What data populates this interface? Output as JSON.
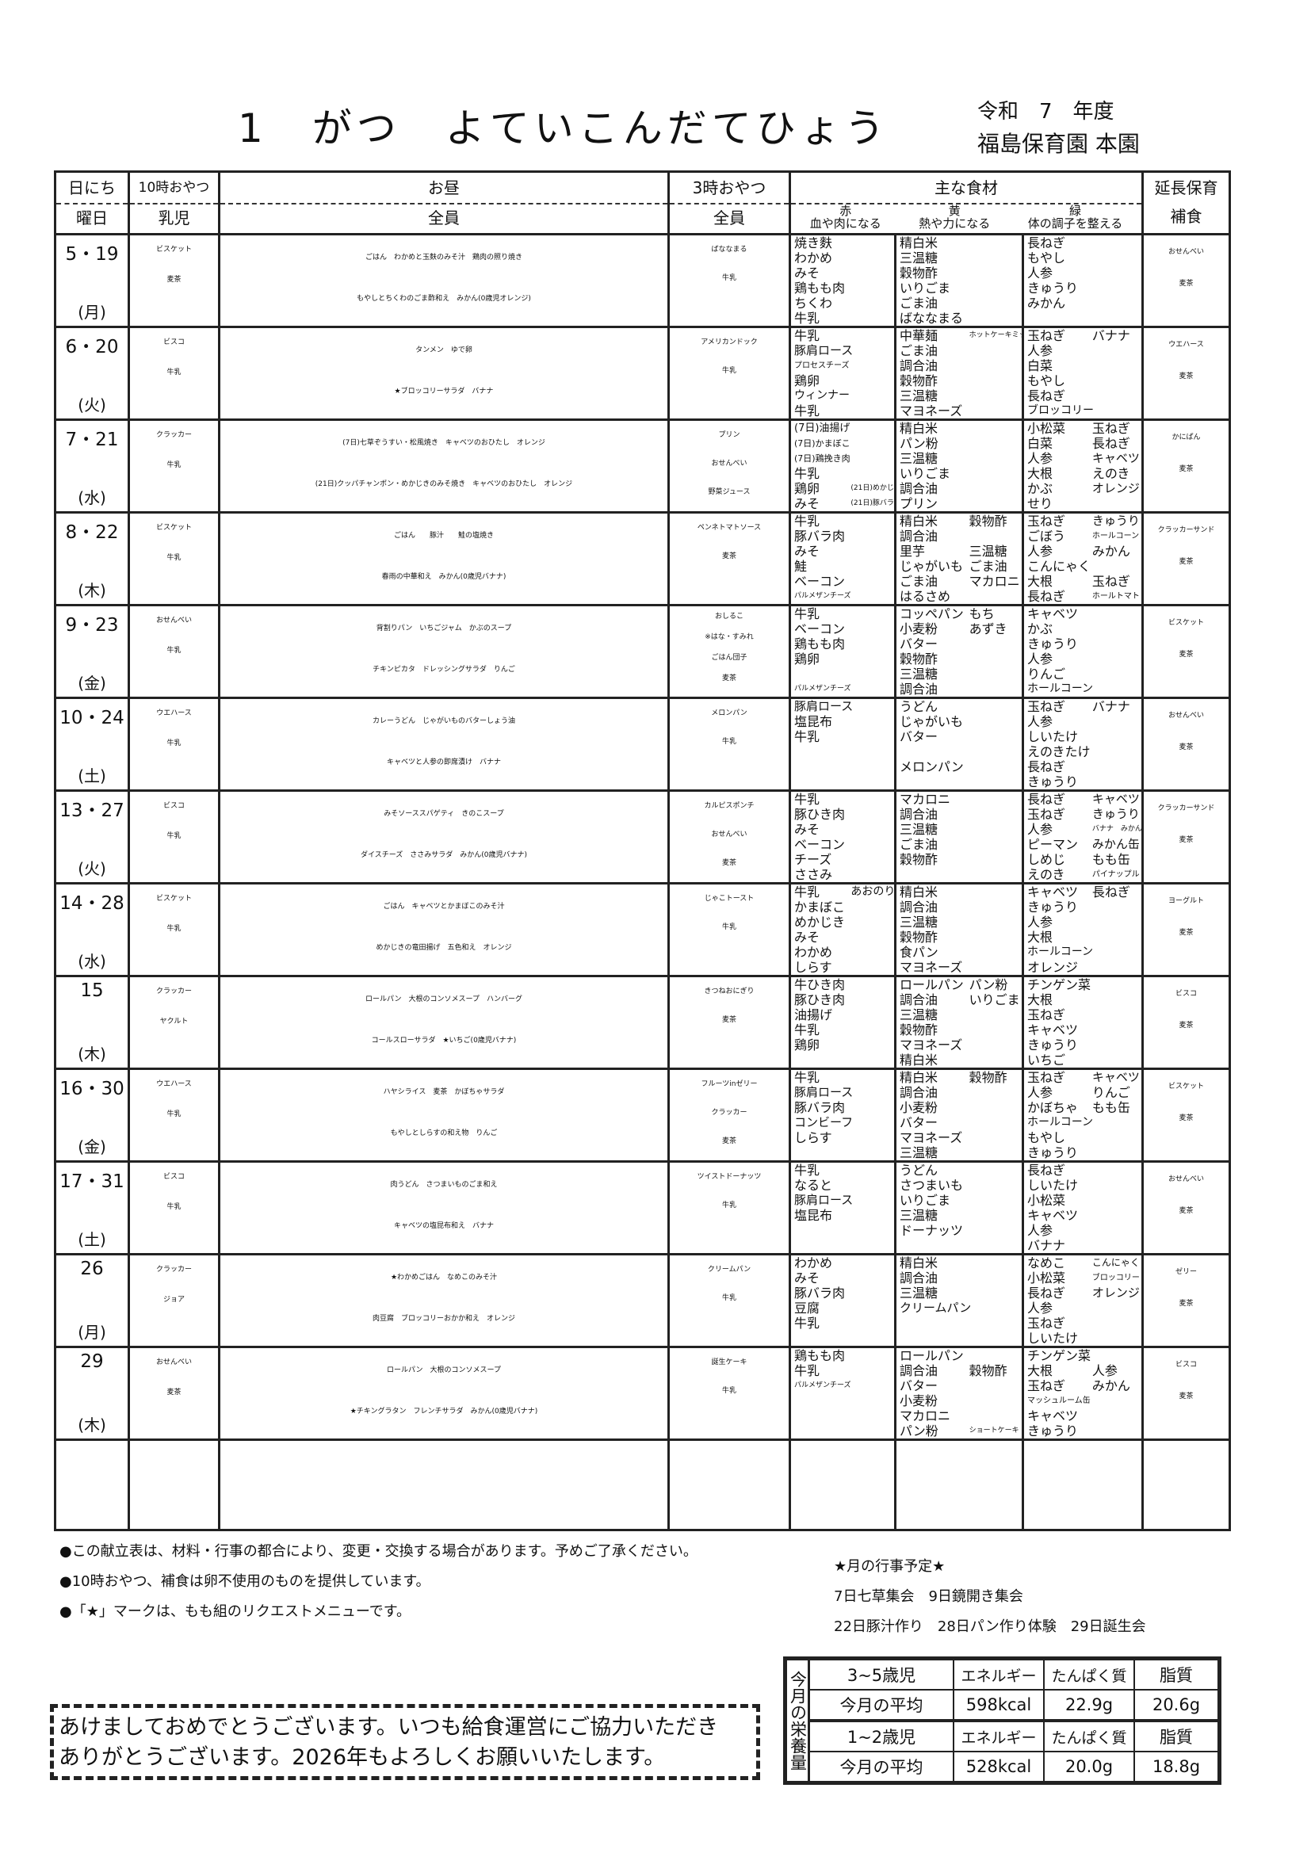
{
  "header": {
    "title": "1　がつ　よていこんだてひょう",
    "fiscal_year": "令和　7　年度",
    "school": "福島保育園 本園"
  },
  "columns": {
    "date_top": "日にち",
    "date_bottom": "曜日",
    "am_top": "10時おやつ",
    "am_bottom": "乳児",
    "lunch_top": "お昼",
    "lunch_bottom": "全員",
    "pm_top": "3時おやつ",
    "pm_bottom": "全員",
    "ing_top": "主な食材",
    "red": "赤",
    "red_desc": "血や肉になる",
    "yellow": "黄",
    "yellow_desc": "熱や力になる",
    "green": "緑",
    "green_desc": "体の調子を整える",
    "ext_top": "延長保育",
    "ext_bottom": "補食"
  },
  "rows": [
    {
      "date": "5・19",
      "dow": "(月)",
      "am": [
        "ビスケット",
        "麦茶"
      ],
      "lunch": [
        "ごはん　わかめと玉麩のみそ汁　鶏肉の照り焼き",
        "もやしとちくわのごま酢和え　みかん(0歳児オレンジ)"
      ],
      "pm": [
        "ばななまる",
        "牛乳"
      ],
      "red": [
        [
          "焼き麩"
        ],
        [
          "わかめ"
        ],
        [
          "みそ"
        ],
        [
          "鶏もも肉"
        ],
        [
          "ちくわ"
        ],
        [
          "牛乳"
        ]
      ],
      "yellow": [
        [
          "精白米"
        ],
        [
          "三温糖"
        ],
        [
          "穀物酢"
        ],
        [
          "いりごま"
        ],
        [
          "ごま油"
        ],
        [
          "ばななまる"
        ]
      ],
      "green": [
        [
          "長ねぎ"
        ],
        [
          "もやし"
        ],
        [
          "人参"
        ],
        [
          "きゅうり"
        ],
        [
          "みかん"
        ]
      ],
      "ext": [
        "おせんべい",
        "麦茶"
      ]
    },
    {
      "date": "6・20",
      "dow": "(火)",
      "am": [
        "ビスコ",
        "牛乳"
      ],
      "lunch": [
        "タンメン　ゆで卵",
        "★ブロッコリーサラダ　バナナ"
      ],
      "pm": [
        "アメリカンドック",
        "牛乳"
      ],
      "red": [
        [
          "牛乳"
        ],
        [
          "豚肩ロース"
        ],
        [
          "プロセスチーズ"
        ],
        [
          "鶏卵"
        ],
        [
          "ウィンナー"
        ],
        [
          "牛乳"
        ]
      ],
      "yellow": [
        [
          "中華麺",
          "ホットケーキミックス"
        ],
        [
          "ごま油"
        ],
        [
          "調合油"
        ],
        [
          "穀物酢"
        ],
        [
          "三温糖"
        ],
        [
          "マヨネーズ"
        ]
      ],
      "green": [
        [
          "玉ねぎ",
          "バナナ"
        ],
        [
          "人参"
        ],
        [
          "白菜"
        ],
        [
          "もやし"
        ],
        [
          "長ねぎ"
        ],
        [
          "ブロッコリー"
        ]
      ],
      "ext": [
        "ウエハース",
        "麦茶"
      ]
    },
    {
      "date": "7・21",
      "dow": "(水)",
      "am": [
        "クラッカー",
        "牛乳"
      ],
      "lunch": [
        "(7日)七草ぞうすい・松風焼き　キャベツのおひたし　オレンジ",
        "(21日)クッパチャンポン・めかじきのみそ焼き　キャベツのおひたし　オレンジ"
      ],
      "pm": [
        "プリン",
        "おせんべい",
        "野菜ジュース"
      ],
      "red": [
        [
          "(7日)油揚げ"
        ],
        [
          "(7日)かまぼこ"
        ],
        [
          "(7日)鶏挽き肉"
        ],
        [
          "牛乳"
        ],
        [
          "鶏卵",
          "(21日)めかじき"
        ],
        [
          "みそ",
          "(21日)豚バラ"
        ]
      ],
      "yellow": [
        [
          "精白米"
        ],
        [
          "パン粉"
        ],
        [
          "三温糖"
        ],
        [
          "いりごま"
        ],
        [
          "調合油"
        ],
        [
          "プリン"
        ]
      ],
      "green": [
        [
          "小松菜",
          "玉ねぎ"
        ],
        [
          "白菜",
          "長ねぎ"
        ],
        [
          "人参",
          "キャベツ"
        ],
        [
          "大根",
          "えのき"
        ],
        [
          "かぶ",
          "オレンジ"
        ],
        [
          "せり"
        ]
      ],
      "ext": [
        "かにぱん",
        "麦茶"
      ]
    },
    {
      "date": "8・22",
      "dow": "(木)",
      "am": [
        "ビスケット",
        "牛乳"
      ],
      "lunch": [
        "ごはん　　豚汁　　鮭の塩焼き",
        "春雨の中華和え　みかん(0歳児バナナ)"
      ],
      "pm": [
        "ペンネトマトソース",
        "麦茶"
      ],
      "red": [
        [
          "牛乳"
        ],
        [
          "豚バラ肉"
        ],
        [
          "みそ"
        ],
        [
          "鮭"
        ],
        [
          "ベーコン"
        ],
        [
          "パルメザンチーズ"
        ]
      ],
      "yellow": [
        [
          "精白米",
          "穀物酢"
        ],
        [
          "調合油"
        ],
        [
          "里芋",
          "三温糖"
        ],
        [
          "じゃがいも",
          "ごま油"
        ],
        [
          "ごま油",
          "マカロニ"
        ],
        [
          "はるさめ"
        ]
      ],
      "green": [
        [
          "玉ねぎ",
          "きゅうり"
        ],
        [
          "ごぼう",
          "ホールコーン"
        ],
        [
          "人参",
          "みかん"
        ],
        [
          "こんにゃく"
        ],
        [
          "大根",
          "玉ねぎ"
        ],
        [
          "長ねぎ",
          "ホールトマト"
        ]
      ],
      "ext": [
        "クラッカーサンド",
        "麦茶"
      ]
    },
    {
      "date": "9・23",
      "dow": "(金)",
      "am": [
        "おせんべい",
        "牛乳"
      ],
      "lunch": [
        "背割りパン　いちごジャム　かぶのスープ",
        "チキンピカタ　ドレッシングサラダ　りんご"
      ],
      "pm": [
        "おしるこ",
        "※はな・すみれ",
        "ごはん団子",
        "麦茶"
      ],
      "red": [
        [
          "牛乳"
        ],
        [
          "ベーコン"
        ],
        [
          "鶏もも肉"
        ],
        [
          "鶏卵"
        ],
        [
          ""
        ],
        [
          "パルメザンチーズ"
        ]
      ],
      "yellow": [
        [
          "コッペパン",
          "もち"
        ],
        [
          "小麦粉",
          "あずき"
        ],
        [
          "バター"
        ],
        [
          "穀物酢"
        ],
        [
          "三温糖"
        ],
        [
          "調合油"
        ]
      ],
      "green": [
        [
          "キャベツ"
        ],
        [
          "かぶ"
        ],
        [
          "きゅうり"
        ],
        [
          "人参"
        ],
        [
          "りんご"
        ],
        [
          "ホールコーン"
        ]
      ],
      "ext": [
        "ビスケット",
        "麦茶"
      ]
    },
    {
      "date": "10・24",
      "dow": "(土)",
      "am": [
        "ウエハース",
        "牛乳"
      ],
      "lunch": [
        "カレーうどん　じゃがいものバターしょう油",
        "キャベツと人参の即席漬け　バナナ"
      ],
      "pm": [
        "メロンパン",
        "牛乳"
      ],
      "red": [
        [
          "豚肩ロース"
        ],
        [
          "塩昆布"
        ],
        [
          "牛乳"
        ]
      ],
      "yellow": [
        [
          "うどん"
        ],
        [
          "じゃがいも"
        ],
        [
          "バター"
        ],
        [
          ""
        ],
        [
          "メロンパン"
        ]
      ],
      "green": [
        [
          "玉ねぎ",
          "バナナ"
        ],
        [
          "人参"
        ],
        [
          "しいたけ"
        ],
        [
          "えのきたけ"
        ],
        [
          "長ねぎ"
        ],
        [
          "きゅうり"
        ]
      ],
      "ext": [
        "おせんべい",
        "麦茶"
      ]
    },
    {
      "date": "13・27",
      "dow": "(火)",
      "am": [
        "ビスコ",
        "牛乳"
      ],
      "lunch": [
        "みそソーススパゲティ　きのこスープ",
        "ダイスチーズ　ささみサラダ　みかん(0歳児バナナ)"
      ],
      "pm": [
        "カルピスポンチ",
        "おせんべい",
        "麦茶"
      ],
      "red": [
        [
          "牛乳"
        ],
        [
          "豚ひき肉"
        ],
        [
          "みそ"
        ],
        [
          "ベーコン"
        ],
        [
          "チーズ"
        ],
        [
          "ささみ"
        ]
      ],
      "yellow": [
        [
          "マカロニ"
        ],
        [
          "調合油"
        ],
        [
          "三温糖"
        ],
        [
          "ごま油"
        ],
        [
          "穀物酢"
        ]
      ],
      "green": [
        [
          "長ねぎ",
          "キャベツ"
        ],
        [
          "玉ねぎ",
          "きゅうり"
        ],
        [
          "人参",
          "バナナ　みかん"
        ],
        [
          "ピーマン",
          "みかん缶"
        ],
        [
          "しめじ",
          "もも缶"
        ],
        [
          "えのき",
          "パイナップル"
        ]
      ],
      "ext": [
        "クラッカーサンド",
        "麦茶"
      ]
    },
    {
      "date": "14・28",
      "dow": "(水)",
      "am": [
        "ビスケット",
        "牛乳"
      ],
      "lunch": [
        "ごはん　キャベツとかまぼこのみそ汁",
        "めかじきの竜田揚げ　五色和え　オレンジ"
      ],
      "pm": [
        "じゃこトースト",
        "牛乳"
      ],
      "red": [
        [
          "牛乳",
          "あおのり"
        ],
        [
          "かまぼこ"
        ],
        [
          "めかじき"
        ],
        [
          "みそ"
        ],
        [
          "わかめ"
        ],
        [
          "しらす"
        ]
      ],
      "yellow": [
        [
          "精白米"
        ],
        [
          "調合油"
        ],
        [
          "三温糖"
        ],
        [
          "穀物酢"
        ],
        [
          "食パン"
        ],
        [
          "マヨネーズ"
        ]
      ],
      "green": [
        [
          "キャベツ",
          "長ねぎ"
        ],
        [
          "きゅうり"
        ],
        [
          "人参"
        ],
        [
          "大根"
        ],
        [
          "ホールコーン"
        ],
        [
          "オレンジ"
        ]
      ],
      "ext": [
        "ヨーグルト",
        "麦茶"
      ]
    },
    {
      "date": "15",
      "dow": "(木)",
      "am": [
        "クラッカー",
        "ヤクルト"
      ],
      "lunch": [
        "ロールパン　大根のコンソメスープ　ハンバーグ",
        "コールスローサラダ　★いちご(0歳児バナナ)"
      ],
      "pm": [
        "きつねおにぎり",
        "麦茶"
      ],
      "red": [
        [
          "牛ひき肉"
        ],
        [
          "豚ひき肉"
        ],
        [
          "油揚げ"
        ],
        [
          "牛乳"
        ],
        [
          "鶏卵"
        ]
      ],
      "yellow": [
        [
          "ロールパン",
          "パン粉"
        ],
        [
          "調合油",
          "いりごま"
        ],
        [
          "三温糖"
        ],
        [
          "穀物酢"
        ],
        [
          "マヨネーズ"
        ],
        [
          "精白米"
        ]
      ],
      "green": [
        [
          "チンゲン菜"
        ],
        [
          "大根"
        ],
        [
          "玉ねぎ"
        ],
        [
          "キャベツ"
        ],
        [
          "きゅうり"
        ],
        [
          "いちご"
        ]
      ],
      "ext": [
        "ビスコ",
        "麦茶"
      ]
    },
    {
      "date": "16・30",
      "dow": "(金)",
      "am": [
        "ウエハース",
        "牛乳"
      ],
      "lunch": [
        "ハヤシライス　麦茶　かぼちゃサラダ",
        "もやしとしらすの和え物　りんご"
      ],
      "pm": [
        "フルーツinゼリー",
        "クラッカー",
        "麦茶"
      ],
      "red": [
        [
          "牛乳"
        ],
        [
          "豚肩ロース"
        ],
        [
          "豚バラ肉"
        ],
        [
          "コンビーフ"
        ],
        [
          "しらす"
        ]
      ],
      "yellow": [
        [
          "精白米",
          "穀物酢"
        ],
        [
          "調合油"
        ],
        [
          "小麦粉"
        ],
        [
          "バター"
        ],
        [
          "マヨネーズ"
        ],
        [
          "三温糖"
        ]
      ],
      "green": [
        [
          "玉ねぎ",
          "キャベツ"
        ],
        [
          "人参",
          "りんご"
        ],
        [
          "かぼちゃ",
          "もも缶"
        ],
        [
          "ホールコーン"
        ],
        [
          "もやし"
        ],
        [
          "きゅうり"
        ]
      ],
      "ext": [
        "ビスケット",
        "麦茶"
      ]
    },
    {
      "date": "17・31",
      "dow": "(土)",
      "am": [
        "ビスコ",
        "牛乳"
      ],
      "lunch": [
        "肉うどん　さつまいものごま和え",
        "キャベツの塩昆布和え　バナナ"
      ],
      "pm": [
        "ツイストドーナッツ",
        "牛乳"
      ],
      "red": [
        [
          "牛乳"
        ],
        [
          "なると"
        ],
        [
          "豚肩ロース"
        ],
        [
          "塩昆布"
        ]
      ],
      "yellow": [
        [
          "うどん"
        ],
        [
          "さつまいも"
        ],
        [
          "いりごま"
        ],
        [
          "三温糖"
        ],
        [
          "ドーナッツ"
        ]
      ],
      "green": [
        [
          "長ねぎ"
        ],
        [
          "しいたけ"
        ],
        [
          "小松菜"
        ],
        [
          "キャベツ"
        ],
        [
          "人参"
        ],
        [
          "バナナ"
        ]
      ],
      "ext": [
        "おせんべい",
        "麦茶"
      ]
    },
    {
      "date": "26",
      "dow": "(月)",
      "am": [
        "クラッカー",
        "ジョア"
      ],
      "lunch": [
        "★わかめごはん　なめこのみそ汁",
        "肉豆腐　ブロッコリーおかか和え　オレンジ"
      ],
      "pm": [
        "クリームパン",
        "牛乳"
      ],
      "red": [
        [
          "わかめ"
        ],
        [
          "みそ"
        ],
        [
          "豚バラ肉"
        ],
        [
          "豆腐"
        ],
        [
          "牛乳"
        ]
      ],
      "yellow": [
        [
          "精白米"
        ],
        [
          "調合油"
        ],
        [
          "三温糖"
        ],
        [
          "クリームパン"
        ]
      ],
      "green": [
        [
          "なめこ",
          "こんにゃく"
        ],
        [
          "小松菜",
          "ブロッコリー"
        ],
        [
          "長ねぎ",
          "オレンジ"
        ],
        [
          "人参"
        ],
        [
          "玉ねぎ"
        ],
        [
          "しいたけ"
        ]
      ],
      "ext": [
        "ゼリー",
        "麦茶"
      ]
    },
    {
      "date": "29",
      "dow": "(木)",
      "am": [
        "おせんべい",
        "麦茶"
      ],
      "lunch": [
        "ロールパン　大根のコンソメスープ",
        "★チキングラタン　フレンチサラダ　みかん(0歳児バナナ)"
      ],
      "pm": [
        "誕生ケーキ",
        "牛乳"
      ],
      "red": [
        [
          "鶏もも肉"
        ],
        [
          "牛乳"
        ],
        [
          "パルメザンチーズ"
        ]
      ],
      "yellow": [
        [
          "ロールパン"
        ],
        [
          "調合油",
          "穀物酢"
        ],
        [
          "バター"
        ],
        [
          "小麦粉"
        ],
        [
          "マカロニ"
        ],
        [
          "パン粉",
          "ショートケーキ"
        ]
      ],
      "green": [
        [
          "チンゲン菜"
        ],
        [
          "大根",
          "人参"
        ],
        [
          "玉ねぎ",
          "みかん"
        ],
        [
          "マッシュルーム缶"
        ],
        [
          "キャベツ"
        ],
        [
          "きゅうり"
        ]
      ],
      "ext": [
        "ビスコ",
        "麦茶"
      ]
    }
  ],
  "notes": [
    "●この献立表は、材料・行事の都合により、変更・交換する場合があります。予めご了承ください。",
    "●10時おやつ、補食は卵不使用のものを提供しています。",
    "●「★」マークは、もも組のリクエストメニューです。"
  ],
  "events": {
    "title": "★月の行事予定★",
    "lines": [
      "7日七草集会　9日鏡開き集会",
      "22日豚汁作り　28日パン作り体験　29日誕生会"
    ]
  },
  "greeting": [
    "あけましておめでとうございます。いつも給食運営にご協力いただき",
    "ありがとうございます。2026年もよろしくお願いいたします。"
  ],
  "nutrition": {
    "label": "今月の栄養量",
    "groups": [
      {
        "age": "3~5歳児",
        "h_energy": "エネルギー",
        "h_protein": "たんぱく質",
        "h_fat": "脂質",
        "avg_label": "今月の平均",
        "energy": "598kcal",
        "protein": "22.9g",
        "fat": "20.6g"
      },
      {
        "age": "1~2歳児",
        "h_energy": "エネルギー",
        "h_protein": "たんぱく質",
        "h_fat": "脂質",
        "avg_label": "今月の平均",
        "energy": "528kcal",
        "protein": "20.0g",
        "fat": "18.8g"
      }
    ]
  }
}
